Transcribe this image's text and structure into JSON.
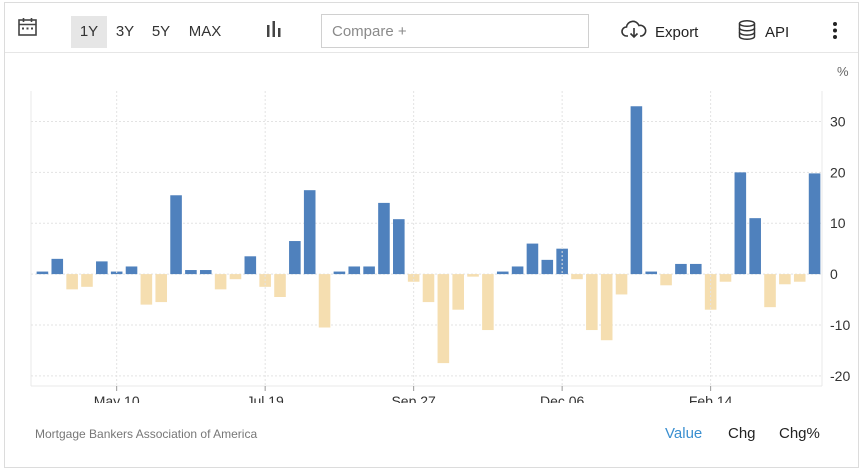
{
  "toolbar": {
    "ranges": [
      "1Y",
      "3Y",
      "5Y",
      "MAX"
    ],
    "active_range": "1Y",
    "compare_placeholder": "Compare +",
    "export_label": "Export",
    "api_label": "API",
    "icons": [
      "calendar-icon",
      "bar-chart-icon",
      "cloud-download-icon",
      "database-icon",
      "more-vert-icon"
    ]
  },
  "unit": "%",
  "chart_data": {
    "type": "bar",
    "x_tick_labels": [
      "May 10",
      "Jul 19",
      "Sep 27",
      "Dec 06",
      "Feb 14"
    ],
    "y_ticks": [
      30,
      20,
      10,
      0,
      -10,
      -20
    ],
    "ylim": [
      -22,
      36
    ],
    "grid": true,
    "values": [
      0.5,
      3.0,
      -3.0,
      -2.5,
      2.5,
      0.5,
      1.5,
      -6.0,
      -5.5,
      15.5,
      0.8,
      0.8,
      -3.0,
      -1.0,
      3.5,
      -2.5,
      -4.5,
      6.5,
      16.5,
      -10.5,
      0.5,
      1.5,
      1.5,
      14.0,
      10.8,
      -1.5,
      -5.5,
      -17.5,
      -7.0,
      -0.5,
      -11.0,
      0.5,
      1.5,
      6.0,
      2.8,
      5.0,
      -1.0,
      -11.0,
      -13.0,
      -4.0,
      33.0,
      0.5,
      -2.2,
      2.0,
      2.0,
      -7.0,
      -1.5,
      20.0,
      11.0,
      -6.5,
      -2.0,
      -1.5,
      19.8
    ],
    "colors": {
      "positive": "#4f81bd",
      "negative": "#f5deb0"
    }
  },
  "footer": {
    "source": "Mortgage Bankers Association of America",
    "modes": [
      "Value",
      "Chg",
      "Chg%"
    ],
    "active_mode": "Value",
    "active_color": "#3a8fd0"
  }
}
